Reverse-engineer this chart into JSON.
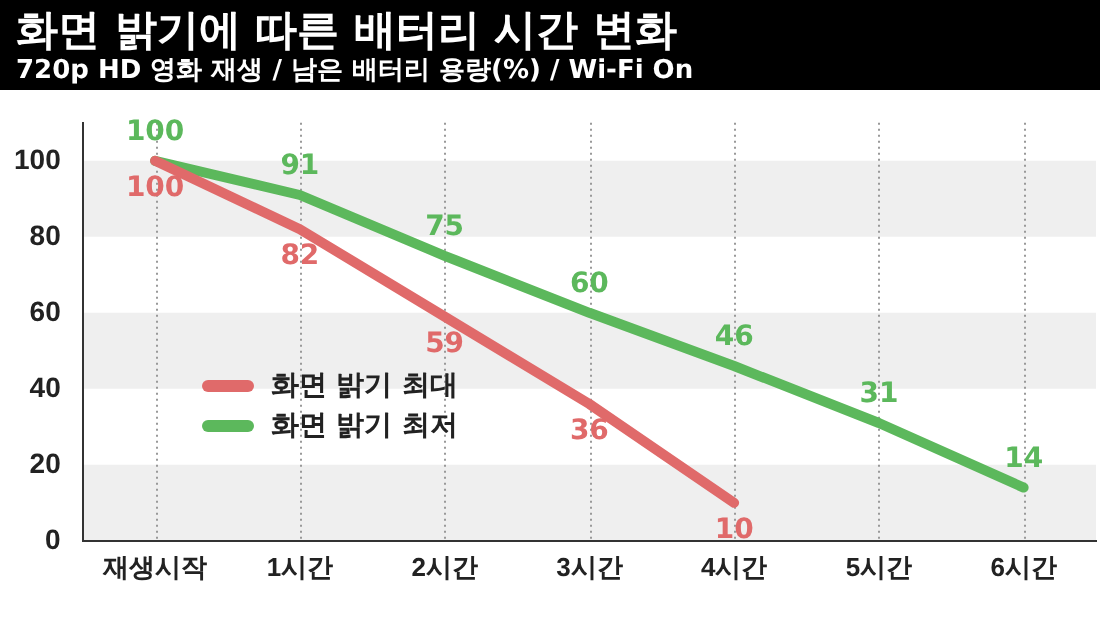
{
  "chart_data": {
    "type": "line",
    "title": "화면 밝기에 따른 배터리 시간 변화",
    "subtitle": "720p HD 영화 재생 / 남은 배터리 용량(%) / Wi-Fi On",
    "categories": [
      "재생시작",
      "1시간",
      "2시간",
      "3시간",
      "4시간",
      "5시간",
      "6시간"
    ],
    "series": [
      {
        "name": "화면 밝기 최대",
        "color": "#e06a6a",
        "values": [
          100,
          82,
          59,
          36,
          10,
          null,
          null
        ]
      },
      {
        "name": "화면 밝기 최저",
        "color": "#5cb85c",
        "values": [
          100,
          91,
          75,
          60,
          46,
          31,
          14
        ]
      }
    ],
    "ylim": [
      0,
      110
    ],
    "yticks": [
      0,
      20,
      40,
      60,
      80,
      100
    ],
    "grid": true,
    "legend": "bottom left",
    "marker": "none",
    "line_style": "solid",
    "data_labels": true
  }
}
